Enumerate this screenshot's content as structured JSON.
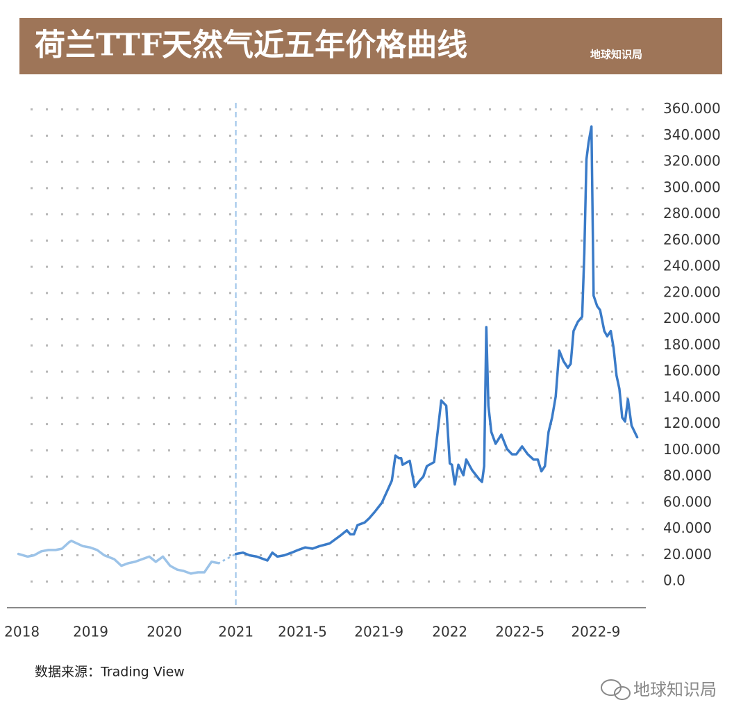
{
  "chart_data": {
    "type": "line",
    "title": "荷兰TTF天然气近五年价格曲线",
    "brand": "地球知识局",
    "source": "数据来源：Trading View",
    "watermark": "地球知识局",
    "xlim": [
      -0.21,
      8.72
    ],
    "xticks": [
      {
        "value": 0,
        "label": "2018"
      },
      {
        "value": 0.96,
        "label": "2019"
      },
      {
        "value": 1.99,
        "label": "2020"
      },
      {
        "value": 2.99,
        "label": "2021"
      },
      {
        "value": 3.92,
        "label": "2021-5"
      },
      {
        "value": 4.99,
        "label": "2021-9"
      },
      {
        "value": 5.98,
        "label": "2022"
      },
      {
        "value": 6.96,
        "label": "2022-5"
      },
      {
        "value": 8.02,
        "label": "2022-9"
      }
    ],
    "ylim": [
      -20,
      364
    ],
    "yticks": [
      {
        "value": 0,
        "label": "0.0"
      },
      {
        "value": 20,
        "label": "20.000"
      },
      {
        "value": 40,
        "label": "40.000"
      },
      {
        "value": 60,
        "label": "60.000"
      },
      {
        "value": 80,
        "label": "80.000"
      },
      {
        "value": 100,
        "label": "100.000"
      },
      {
        "value": 120,
        "label": "120.000"
      },
      {
        "value": 140,
        "label": "140.000"
      },
      {
        "value": 160,
        "label": "160.000"
      },
      {
        "value": 180,
        "label": "180.000"
      },
      {
        "value": 200,
        "label": "200.000"
      },
      {
        "value": 220,
        "label": "220.000"
      },
      {
        "value": 240,
        "label": "240.000"
      },
      {
        "value": 260,
        "label": "260.000"
      },
      {
        "value": 280,
        "label": "280.000"
      },
      {
        "value": 300,
        "label": "300.000"
      },
      {
        "value": 320,
        "label": "320.000"
      },
      {
        "value": 340,
        "label": "340.000"
      },
      {
        "value": 360,
        "label": "360.000"
      }
    ],
    "grid": true,
    "marker_x": 2.99,
    "marker_color": "#9cc3e8",
    "series": [
      {
        "color": "#9cc3e8",
        "dash": "solid",
        "x": [
          -0.05,
          0.08,
          0.17,
          0.27,
          0.37,
          0.47,
          0.56,
          0.66,
          0.69,
          0.85,
          0.95,
          1.05,
          1.15,
          1.29,
          1.39,
          1.49,
          1.58,
          1.68,
          1.78,
          1.87,
          1.97,
          2.07,
          2.17,
          2.26,
          2.36,
          2.46,
          2.55,
          2.65,
          2.75
        ],
        "values": [
          21,
          19,
          20,
          23,
          24,
          24,
          25,
          30,
          31,
          27,
          26,
          24,
          20,
          17,
          12,
          14,
          15,
          17,
          19,
          15,
          19,
          12,
          9,
          8,
          6,
          7,
          7,
          15,
          14
        ]
      },
      {
        "color": "#9cc3e8",
        "dash": "dotted",
        "x": [
          2.75,
          2.99
        ],
        "values": [
          14,
          21
        ]
      },
      {
        "color": "#3a7bc8",
        "dash": "solid",
        "x": [
          2.99,
          3.09,
          3.18,
          3.28,
          3.43,
          3.5,
          3.57,
          3.67,
          3.77,
          3.86,
          3.96,
          4.06,
          4.16,
          4.3,
          4.45,
          4.54,
          4.59,
          4.64,
          4.69,
          4.79,
          4.85,
          4.93,
          5.03,
          5.13,
          5.17,
          5.22,
          5.27,
          5.3,
          5.32,
          5.42,
          5.49,
          5.56,
          5.61,
          5.66,
          5.76,
          5.81,
          5.86,
          5.93,
          5.98,
          6.01,
          6.05,
          6.1,
          6.17,
          6.21,
          6.29,
          6.39,
          6.43,
          6.46,
          6.49,
          6.52,
          6.56,
          6.62,
          6.7,
          6.78,
          6.85,
          6.91,
          6.99,
          7.07,
          7.15,
          7.21,
          7.26,
          7.31,
          7.36,
          7.41,
          7.46,
          7.51,
          7.57,
          7.63,
          7.67,
          7.71,
          7.77,
          7.83,
          7.86,
          7.89,
          7.92,
          7.96,
          7.99,
          8.04,
          8.08,
          8.14,
          8.18,
          8.23,
          8.27,
          8.31,
          8.35,
          8.39,
          8.43,
          8.47,
          8.52,
          8.6
        ],
        "values": [
          21,
          22,
          20,
          19,
          16,
          22,
          19,
          20,
          22,
          24,
          26,
          25,
          27,
          29,
          35,
          39,
          36,
          36,
          43,
          45,
          48,
          53,
          60,
          72,
          77,
          96,
          94,
          94,
          89,
          92,
          72,
          77,
          80,
          88,
          91,
          114,
          138,
          134,
          90,
          89,
          74,
          89,
          81,
          93,
          85,
          78,
          76,
          88,
          194,
          134,
          114,
          105,
          112,
          101,
          97,
          97,
          103,
          97,
          93,
          93,
          84,
          88,
          114,
          125,
          141,
          176,
          168,
          163,
          166,
          191,
          198,
          202,
          250,
          322,
          335,
          347,
          218,
          210,
          207,
          191,
          187,
          191,
          178,
          157,
          147,
          125,
          122,
          139,
          119,
          110
        ]
      }
    ]
  }
}
